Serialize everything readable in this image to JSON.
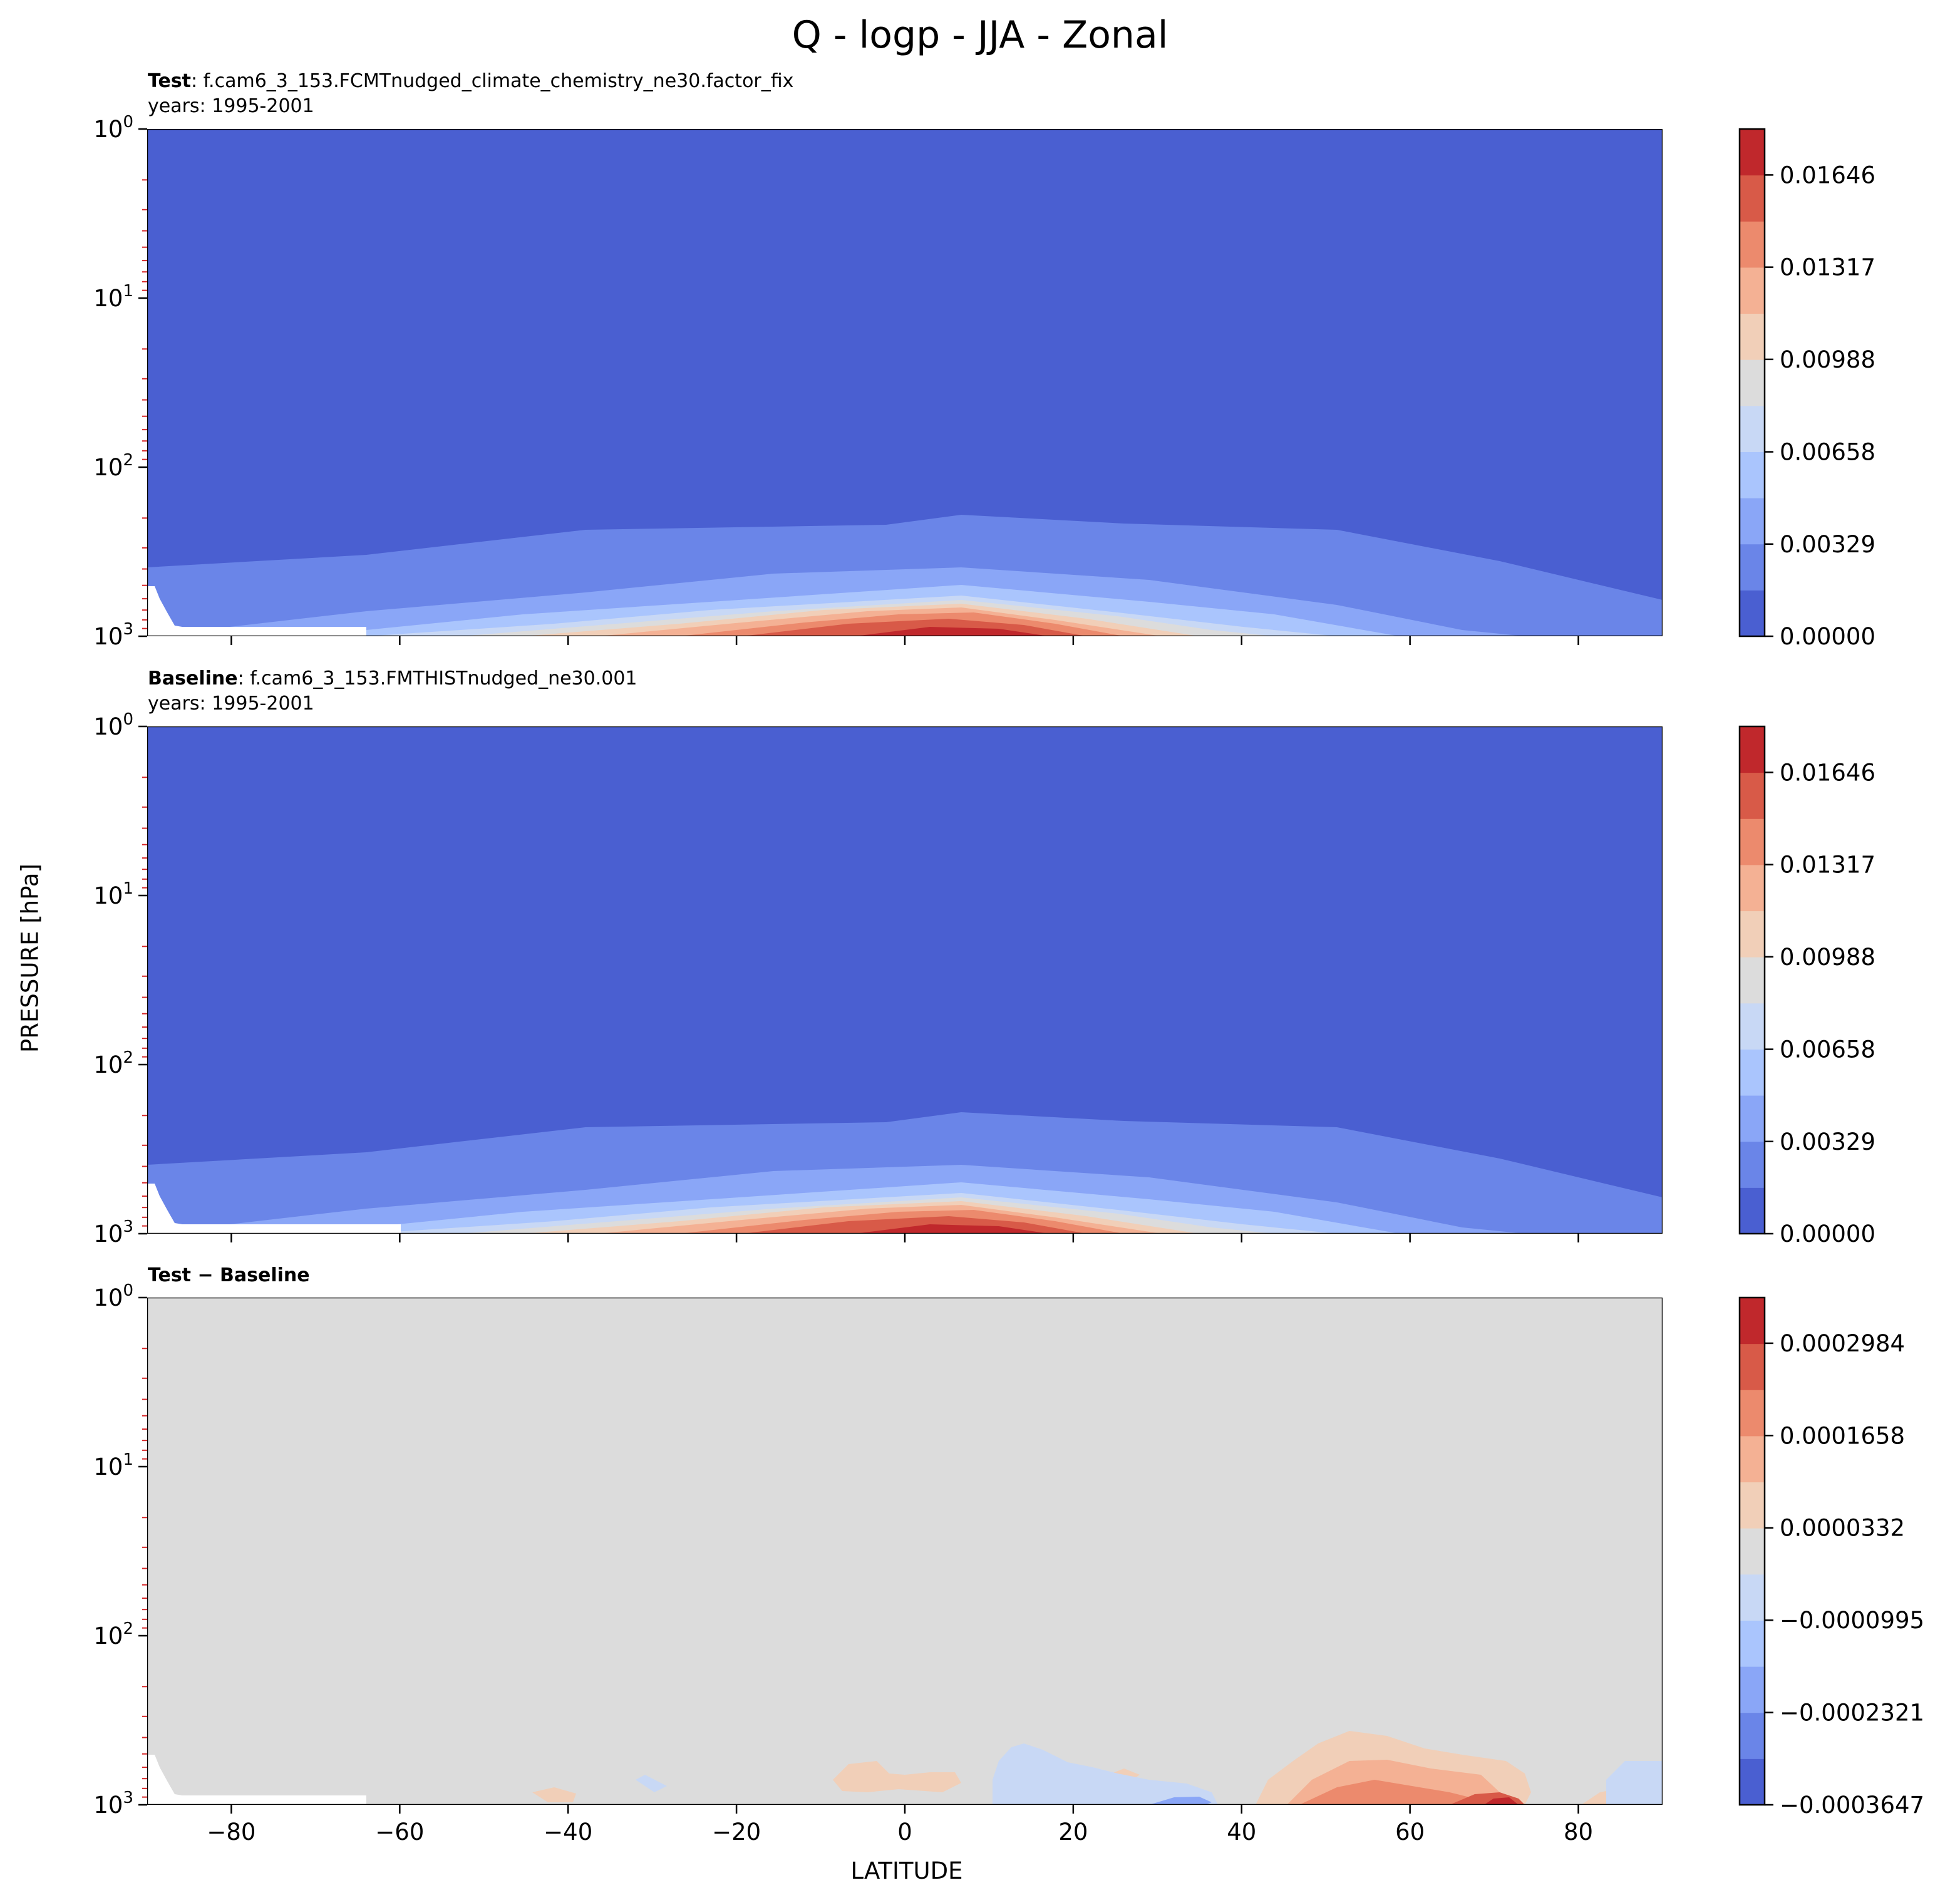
{
  "figure": {
    "title": "Q - logp - JJA - Zonal",
    "ylabel": "PRESSURE [hPa]",
    "xlabel": "LATITUDE"
  },
  "panels": [
    {
      "label_bold": "Test",
      "label_text": ": f.cam6_3_153.FCMTnudged_climate_chemistry_ne30.factor_fix",
      "years": "years: 1995-2001",
      "colorbar_ticks": [
        "0.01646",
        "0.01317",
        "0.00988",
        "0.00658",
        "0.00329",
        "0.00000"
      ]
    },
    {
      "label_bold": "Baseline",
      "label_text": ": f.cam6_3_153.FMTHISTnudged_ne30.001",
      "years": "years: 1995-2001",
      "colorbar_ticks": [
        "0.01646",
        "0.01317",
        "0.00988",
        "0.00658",
        "0.00329",
        "0.00000"
      ]
    },
    {
      "label_bold": "Test − Baseline",
      "label_text": "",
      "years": "",
      "colorbar_ticks": [
        "0.0002984",
        "0.0001658",
        "0.0000332",
        "−0.0000995",
        "−0.0002321",
        "−0.0003647"
      ]
    }
  ],
  "chart_data": [
    {
      "type": "heatmap",
      "title": "Test",
      "x": [
        -90,
        90
      ],
      "xticks": [
        -80,
        -60,
        -40,
        -20,
        0,
        20,
        40,
        60,
        80
      ],
      "ylim": [
        1000,
        1
      ],
      "yscale": "log",
      "yticks": [
        "10^0",
        "10^1",
        "10^2",
        "10^3"
      ],
      "colorbar": {
        "min": 0.0,
        "max": 0.0181,
        "ticks": [
          0.0,
          0.00329,
          0.00658,
          0.00988,
          0.01317,
          0.01646
        ]
      },
      "field_summary": "Near-zero specific humidity above ~500 hPa; maximum ~0.018 near the surface around 5-10N",
      "colors": [
        "#4a5fd1",
        "#6a85e8",
        "#8aa6f7",
        "#aac5fd",
        "#c8d8f5",
        "#dcdcdc",
        "#f1cfb8",
        "#f4b194",
        "#ec8a6d",
        "#d85a48",
        "#c0282c"
      ]
    },
    {
      "type": "heatmap",
      "title": "Baseline",
      "x": [
        -90,
        90
      ],
      "xticks": [
        -80,
        -60,
        -40,
        -20,
        0,
        20,
        40,
        60,
        80
      ],
      "ylim": [
        1000,
        1
      ],
      "yscale": "log",
      "yticks": [
        "10^0",
        "10^1",
        "10^2",
        "10^3"
      ],
      "colorbar": {
        "min": 0.0,
        "max": 0.0181,
        "ticks": [
          0.0,
          0.00329,
          0.00658,
          0.00988,
          0.01317,
          0.01646
        ]
      },
      "field_summary": "Nearly identical to Test",
      "colors": [
        "#4a5fd1",
        "#6a85e8",
        "#8aa6f7",
        "#aac5fd",
        "#c8d8f5",
        "#dcdcdc",
        "#f1cfb8",
        "#f4b194",
        "#ec8a6d",
        "#d85a48",
        "#c0282c"
      ]
    },
    {
      "type": "heatmap",
      "title": "Test − Baseline",
      "x": [
        -90,
        90
      ],
      "xticks": [
        -80,
        -60,
        -40,
        -20,
        0,
        20,
        40,
        60,
        80
      ],
      "ylim": [
        1000,
        1
      ],
      "yscale": "log",
      "yticks": [
        "10^0",
        "10^1",
        "10^2",
        "10^3"
      ],
      "colorbar": {
        "min": -0.0003647,
        "max": 0.000364,
        "ticks": [
          -0.0003647,
          -0.0002321,
          -9.95e-05,
          3.32e-05,
          0.0001658,
          0.0002984
        ]
      },
      "field_summary": "Differences near zero aloft; positive anomalies near 40-75N and around -5 to 5 latitude, negative near 10-40N and 80-90N near the surface",
      "colors": [
        "#4a5fd1",
        "#6a85e8",
        "#8aa6f7",
        "#aac5fd",
        "#c8d8f5",
        "#dcdcdc",
        "#f1cfb8",
        "#f4b194",
        "#ec8a6d",
        "#d85a48",
        "#c0282c"
      ]
    }
  ]
}
